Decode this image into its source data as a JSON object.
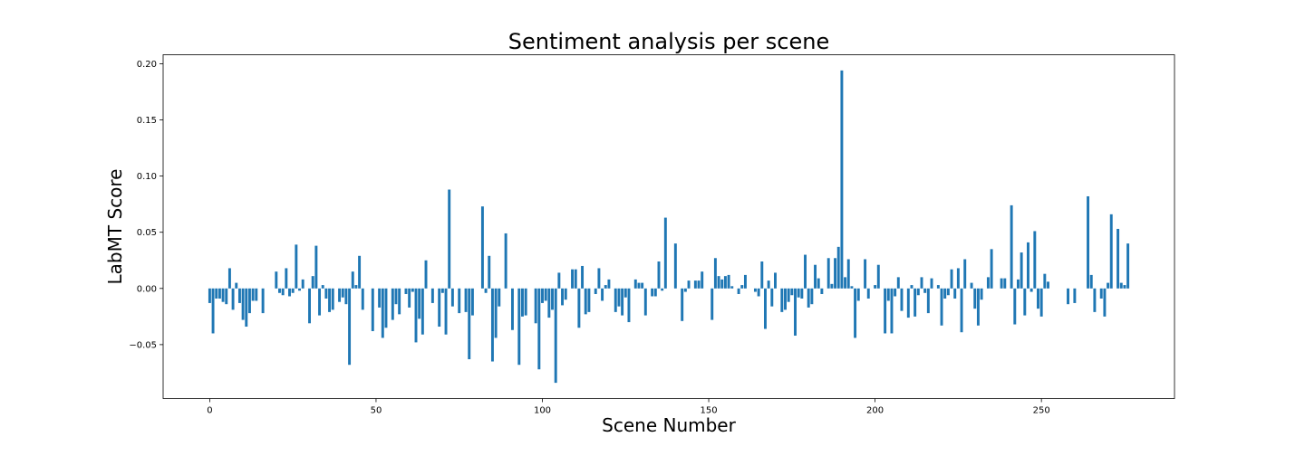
{
  "chart_data": {
    "type": "bar",
    "title": "Sentiment analysis per scene",
    "xlabel": "Scene Number",
    "ylabel": "LabMT Score",
    "xlim": [
      -14,
      290
    ],
    "ylim": [
      -0.098,
      0.208
    ],
    "x_ticks": [
      0,
      50,
      100,
      150,
      200,
      250
    ],
    "x_tick_labels": [
      "0",
      "50",
      "100",
      "150",
      "200",
      "250"
    ],
    "y_ticks": [
      -0.05,
      0.0,
      0.05,
      0.1,
      0.15,
      0.2
    ],
    "y_tick_labels": [
      "−0.05",
      "0.00",
      "0.05",
      "0.10",
      "0.15",
      "0.20"
    ],
    "grid": false,
    "bar_color": "#1f77b4",
    "x": [
      0,
      1,
      2,
      3,
      4,
      5,
      6,
      7,
      8,
      9,
      10,
      11,
      12,
      13,
      14,
      15,
      16,
      17,
      18,
      19,
      20,
      21,
      22,
      23,
      24,
      25,
      26,
      27,
      28,
      29,
      30,
      31,
      32,
      33,
      34,
      35,
      36,
      37,
      38,
      39,
      40,
      41,
      42,
      43,
      44,
      45,
      46,
      47,
      48,
      49,
      50,
      51,
      52,
      53,
      54,
      55,
      56,
      57,
      58,
      59,
      60,
      61,
      62,
      63,
      64,
      65,
      66,
      67,
      68,
      69,
      70,
      71,
      72,
      73,
      74,
      75,
      76,
      77,
      78,
      79,
      80,
      81,
      82,
      83,
      84,
      85,
      86,
      87,
      88,
      89,
      90,
      91,
      92,
      93,
      94,
      95,
      96,
      97,
      98,
      99,
      100,
      101,
      102,
      103,
      104,
      105,
      106,
      107,
      108,
      109,
      110,
      111,
      112,
      113,
      114,
      115,
      116,
      117,
      118,
      119,
      120,
      121,
      122,
      123,
      124,
      125,
      126,
      127,
      128,
      129,
      130,
      131,
      132,
      133,
      134,
      135,
      136,
      137,
      138,
      139,
      140,
      141,
      142,
      143,
      144,
      145,
      146,
      147,
      148,
      149,
      150,
      151,
      152,
      153,
      154,
      155,
      156,
      157,
      158,
      159,
      160,
      161,
      162,
      163,
      164,
      165,
      166,
      167,
      168,
      169,
      170,
      171,
      172,
      173,
      174,
      175,
      176,
      177,
      178,
      179,
      180,
      181,
      182,
      183,
      184,
      185,
      186,
      187,
      188,
      189,
      190,
      191,
      192,
      193,
      194,
      195,
      196,
      197,
      198,
      199,
      200,
      201,
      202,
      203,
      204,
      205,
      206,
      207,
      208,
      209,
      210,
      211,
      212,
      213,
      214,
      215,
      216,
      217,
      218,
      219,
      220,
      221,
      222,
      223,
      224,
      225,
      226,
      227,
      228,
      229,
      230,
      231,
      232,
      233,
      234,
      235,
      236,
      237,
      238,
      239,
      240,
      241,
      242,
      243,
      244,
      245,
      246,
      247,
      248,
      249,
      250,
      251,
      252,
      253,
      254,
      255,
      256,
      257,
      258,
      259,
      260,
      261,
      262,
      263,
      264,
      265,
      266,
      267,
      268,
      269,
      270,
      271,
      272,
      273,
      274,
      275,
      276
    ],
    "values": [
      -0.013,
      -0.04,
      -0.009,
      -0.009,
      -0.012,
      -0.014,
      0.018,
      -0.019,
      0.005,
      -0.013,
      -0.028,
      -0.034,
      -0.022,
      -0.011,
      -0.011,
      0,
      -0.022,
      0,
      0,
      0,
      0.015,
      -0.004,
      -0.006,
      0.018,
      -0.007,
      -0.004,
      0.039,
      -0.002,
      0.008,
      0,
      -0.031,
      0.011,
      0.038,
      -0.024,
      0.003,
      -0.009,
      -0.021,
      -0.019,
      0,
      -0.012,
      -0.008,
      -0.014,
      -0.068,
      0.015,
      0.003,
      0.029,
      -0.019,
      0,
      0,
      -0.038,
      0,
      -0.017,
      -0.044,
      -0.035,
      0,
      -0.028,
      -0.014,
      -0.023,
      0,
      -0.005,
      -0.017,
      -0.003,
      -0.048,
      -0.027,
      -0.041,
      0.025,
      0,
      -0.013,
      0,
      -0.034,
      -0.004,
      -0.041,
      0.088,
      -0.016,
      0,
      -0.022,
      0,
      -0.021,
      -0.063,
      -0.024,
      0,
      0,
      0.073,
      -0.004,
      0.029,
      -0.065,
      -0.044,
      -0.016,
      0,
      0.049,
      0,
      -0.037,
      0,
      -0.068,
      -0.025,
      -0.024,
      0,
      0,
      -0.031,
      -0.072,
      -0.013,
      -0.011,
      -0.026,
      -0.019,
      -0.084,
      0.014,
      -0.015,
      -0.01,
      0,
      0.017,
      0.017,
      -0.035,
      0.02,
      -0.023,
      -0.021,
      0,
      -0.005,
      0.018,
      -0.011,
      0.003,
      0.008,
      0,
      -0.021,
      -0.016,
      -0.024,
      -0.008,
      -0.03,
      0,
      0.008,
      0.005,
      0.005,
      -0.024,
      0,
      -0.007,
      -0.007,
      0.024,
      -0.002,
      0.063,
      0,
      0,
      0.04,
      0,
      -0.029,
      -0.003,
      0.007,
      0,
      0.007,
      0.007,
      0.015,
      0,
      0,
      -0.028,
      0.027,
      0.011,
      0.008,
      0.011,
      0.012,
      0.002,
      0,
      -0.005,
      0.003,
      0.012,
      0,
      0,
      -0.003,
      -0.007,
      0.024,
      -0.036,
      0.007,
      -0.016,
      0.014,
      0,
      -0.021,
      -0.019,
      -0.012,
      -0.006,
      -0.042,
      -0.008,
      -0.009,
      0.03,
      -0.017,
      -0.014,
      0.021,
      0.009,
      -0.005,
      0,
      0.027,
      0.004,
      0.027,
      0.037,
      0.194,
      0.01,
      0.026,
      0.002,
      -0.044,
      -0.011,
      0,
      0.026,
      -0.009,
      0,
      0.003,
      0.021,
      0,
      -0.04,
      -0.011,
      -0.04,
      -0.007,
      0.01,
      -0.02,
      0,
      -0.026,
      0.003,
      -0.025,
      -0.006,
      0.01,
      -0.004,
      -0.022,
      0.009,
      0,
      0.003,
      -0.033,
      -0.009,
      -0.006,
      0.017,
      -0.009,
      0.018,
      -0.039,
      0.026,
      0,
      0.005,
      -0.018,
      -0.033,
      -0.01,
      0,
      0.01,
      0.035,
      0,
      0,
      0.009,
      0.009,
      0,
      0.074,
      -0.032,
      0.008,
      0.032,
      -0.024,
      0.041,
      -0.003,
      0.051,
      -0.018,
      -0.025,
      0.013,
      0.006,
      0,
      0,
      0,
      0,
      0,
      -0.014,
      0,
      -0.013,
      0,
      0,
      0,
      0.082,
      0.012,
      -0.021,
      0,
      -0.009,
      -0.025,
      0.005,
      0.066,
      0,
      0.053,
      0.005,
      0.003,
      0.04
    ]
  }
}
